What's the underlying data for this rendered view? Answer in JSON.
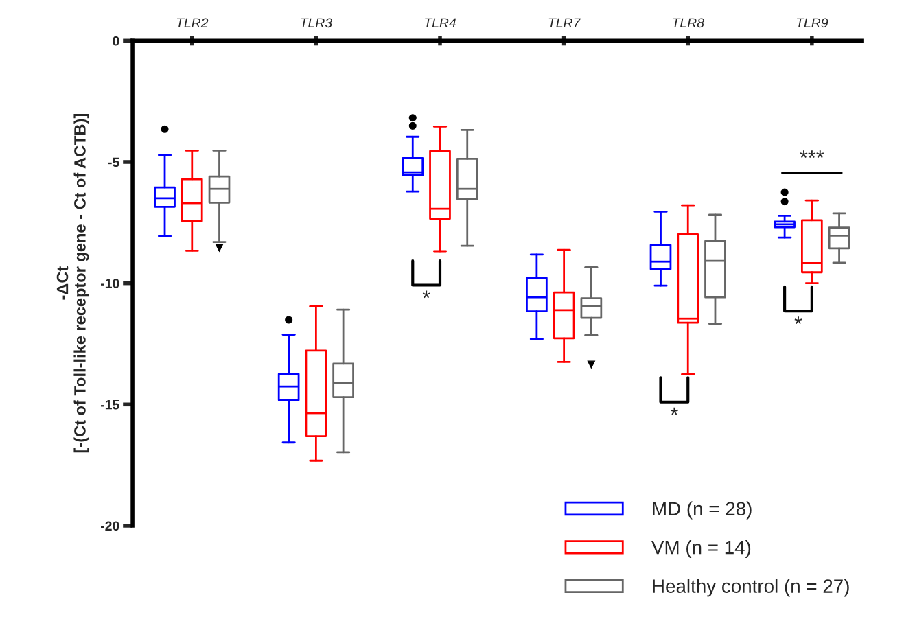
{
  "chart_data": {
    "type": "box",
    "categories": [
      "TLR2",
      "TLR3",
      "TLR4",
      "TLR7",
      "TLR8",
      "TLR9"
    ],
    "ylabel": "-ΔCt\n[-(Ct of Toll-like receptor gene - Ct of ACTB)]",
    "ylim": [
      -20,
      0
    ],
    "yticks": [
      0,
      -5,
      -10,
      -15,
      -20
    ],
    "grid": false,
    "legend": "bottom right",
    "series": [
      {
        "name": "MD (n = 28)",
        "color": "#0000ff",
        "marker": "circle",
        "boxes": [
          {
            "low": -8.06,
            "q1": -6.85,
            "median": -6.5,
            "q3": -6.05,
            "high": -4.72,
            "outliers": [
              -3.65
            ]
          },
          {
            "low": -16.57,
            "q1": -14.82,
            "median": -14.26,
            "q3": -13.74,
            "high": -12.12,
            "outliers": [
              -11.51
            ]
          },
          {
            "low": -6.22,
            "q1": -5.55,
            "median": -5.43,
            "q3": -4.84,
            "high": -3.96,
            "outliers": [
              -3.51,
              -3.18
            ]
          },
          {
            "low": -12.3,
            "q1": -11.16,
            "median": -10.58,
            "q3": -9.78,
            "high": -8.82
          },
          {
            "low": -10.1,
            "q1": -9.42,
            "median": -9.11,
            "q3": -8.42,
            "high": -7.05
          },
          {
            "low": -8.12,
            "q1": -7.69,
            "median": -7.57,
            "q3": -7.46,
            "high": -7.22,
            "outliers": [
              -6.63,
              -6.25
            ]
          }
        ]
      },
      {
        "name": "VM (n = 14)",
        "color": "#ff0000",
        "marker": "circle",
        "boxes": [
          {
            "low": -8.66,
            "q1": -7.44,
            "median": -6.7,
            "q3": -5.71,
            "high": -4.53
          },
          {
            "low": -17.32,
            "q1": -16.31,
            "median": -15.36,
            "q3": -12.78,
            "high": -10.95
          },
          {
            "low": -8.68,
            "q1": -7.34,
            "median": -6.93,
            "q3": -4.55,
            "high": -3.54
          },
          {
            "low": -13.25,
            "q1": -12.27,
            "median": -11.11,
            "q3": -10.38,
            "high": -8.63
          },
          {
            "low": -13.75,
            "q1": -11.63,
            "median": -11.46,
            "q3": -7.98,
            "high": -6.79
          },
          {
            "low": -10.0,
            "q1": -9.55,
            "median": -9.17,
            "q3": -7.4,
            "high": -6.59
          }
        ]
      },
      {
        "name": "Healthy control (n = 27)",
        "color": "#666666",
        "marker": "triangle",
        "boxes": [
          {
            "low": -8.3,
            "q1": -6.68,
            "median": -6.11,
            "q3": -5.6,
            "high": -4.53,
            "outliers": [
              -8.54
            ]
          },
          {
            "low": -16.97,
            "q1": -14.7,
            "median": -14.12,
            "q3": -13.32,
            "high": -11.09
          },
          {
            "low": -8.46,
            "q1": -6.53,
            "median": -6.11,
            "q3": -4.87,
            "high": -3.68
          },
          {
            "low": -12.14,
            "q1": -11.43,
            "median": -10.95,
            "q3": -10.62,
            "high": -9.34,
            "outliers": [
              -13.35
            ]
          },
          {
            "low": -11.67,
            "q1": -10.58,
            "median": -9.08,
            "q3": -8.26,
            "high": -7.18
          },
          {
            "low": -9.16,
            "q1": -8.56,
            "median": -8.04,
            "q3": -7.71,
            "high": -7.12
          }
        ]
      }
    ],
    "annotations": [
      "*",
      "*",
      "*",
      "***"
    ]
  }
}
